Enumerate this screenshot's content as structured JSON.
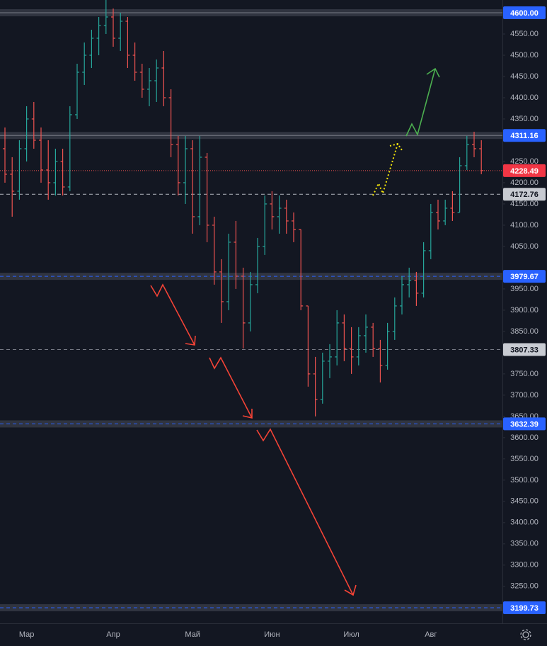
{
  "chart_data": {
    "type": "ohlc",
    "categories": [
      null,
      null,
      null,
      "Мар",
      null,
      null,
      null,
      null,
      null,
      null,
      null,
      null,
      null,
      null,
      null,
      "Апр",
      null,
      null,
      null,
      null,
      null,
      null,
      null,
      null,
      null,
      null,
      "Май",
      null,
      null,
      null,
      null,
      null,
      null,
      null,
      null,
      null,
      null,
      "Июн",
      null,
      null,
      null,
      null,
      null,
      null,
      null,
      null,
      null,
      null,
      "Июл",
      null,
      null,
      null,
      null,
      null,
      null,
      null,
      null,
      null,
      null,
      "Авг",
      null,
      null,
      null,
      null,
      null,
      null,
      null,
      null
    ],
    "ohlc": [
      [
        4280,
        4330,
        4200,
        4220
      ],
      [
        4220,
        4260,
        4120,
        4180
      ],
      [
        4180,
        4300,
        4160,
        4280
      ],
      [
        4280,
        4380,
        4250,
        4350
      ],
      [
        4350,
        4390,
        4280,
        4300
      ],
      [
        4300,
        4330,
        4200,
        4230
      ],
      [
        4230,
        4300,
        4160,
        4200
      ],
      [
        4200,
        4280,
        4170,
        4250
      ],
      [
        4250,
        4280,
        4170,
        4190
      ],
      [
        4190,
        4380,
        4180,
        4360
      ],
      [
        4360,
        4480,
        4350,
        4460
      ],
      [
        4460,
        4530,
        4430,
        4500
      ],
      [
        4500,
        4560,
        4470,
        4540
      ],
      [
        4540,
        4590,
        4500,
        4570
      ],
      [
        4570,
        4630,
        4550,
        4590
      ],
      [
        4590,
        4610,
        4520,
        4540
      ],
      [
        4540,
        4600,
        4510,
        4580
      ],
      [
        4580,
        4590,
        4470,
        4500
      ],
      [
        4500,
        4530,
        4440,
        4460
      ],
      [
        4460,
        4480,
        4400,
        4420
      ],
      [
        4420,
        4470,
        4380,
        4440
      ],
      [
        4440,
        4490,
        4390,
        4470
      ],
      [
        4470,
        4510,
        4380,
        4400
      ],
      [
        4400,
        4420,
        4260,
        4290
      ],
      [
        4290,
        4310,
        4170,
        4200
      ],
      [
        4200,
        4310,
        4150,
        4280
      ],
      [
        4280,
        4300,
        4080,
        4120
      ],
      [
        4120,
        4310,
        4100,
        4260
      ],
      [
        4260,
        4270,
        4060,
        4100
      ],
      [
        4100,
        4120,
        3960,
        3990
      ],
      [
        3990,
        4020,
        3870,
        3920
      ],
      [
        3920,
        4080,
        3900,
        4060
      ],
      [
        4060,
        4110,
        3950,
        3980
      ],
      [
        3980,
        4000,
        3810,
        3870
      ],
      [
        3870,
        3990,
        3850,
        3960
      ],
      [
        3960,
        4070,
        3940,
        4050
      ],
      [
        4050,
        4170,
        4030,
        4150
      ],
      [
        4150,
        4180,
        4090,
        4120
      ],
      [
        4120,
        4170,
        4080,
        4140
      ],
      [
        4140,
        4160,
        4080,
        4110
      ],
      [
        4110,
        4130,
        4060,
        4090
      ],
      [
        4090,
        4090,
        3900,
        3910
      ],
      [
        3910,
        3910,
        3720,
        3750
      ],
      [
        3750,
        3790,
        3650,
        3690
      ],
      [
        3690,
        3800,
        3680,
        3780
      ],
      [
        3780,
        3820,
        3740,
        3790
      ],
      [
        3790,
        3900,
        3770,
        3870
      ],
      [
        3870,
        3890,
        3780,
        3810
      ],
      [
        3810,
        3860,
        3750,
        3790
      ],
      [
        3790,
        3860,
        3770,
        3840
      ],
      [
        3840,
        3890,
        3800,
        3860
      ],
      [
        3860,
        3870,
        3790,
        3810
      ],
      [
        3810,
        3830,
        3730,
        3770
      ],
      [
        3770,
        3870,
        3760,
        3850
      ],
      [
        3850,
        3930,
        3830,
        3910
      ],
      [
        3910,
        3980,
        3890,
        3960
      ],
      [
        3960,
        4000,
        3930,
        3970
      ],
      [
        3970,
        3990,
        3910,
        3940
      ],
      [
        3940,
        4060,
        3930,
        4040
      ],
      [
        4040,
        4150,
        4020,
        4130
      ],
      [
        4130,
        4160,
        4090,
        4110
      ],
      [
        4110,
        4160,
        4100,
        4140
      ],
      [
        4140,
        4180,
        4110,
        4130
      ],
      [
        4130,
        4260,
        4130,
        4240
      ],
      [
        4240,
        4310,
        4230,
        4290
      ],
      [
        4290,
        4320,
        4260,
        4280
      ],
      [
        4280,
        4300,
        4220,
        4228.49
      ]
    ],
    "up_color": "#26a69a",
    "down_color": "#ef5350",
    "ylim": [
      3163,
      4630
    ],
    "yticks": [
      {
        "value": 3250,
        "label": "3250.00"
      },
      {
        "value": 3300,
        "label": "3300.00"
      },
      {
        "value": 3350,
        "label": "3350.00"
      },
      {
        "value": 3400,
        "label": "3400.00"
      },
      {
        "value": 3450,
        "label": "3450.00"
      },
      {
        "value": 3500,
        "label": "3500.00"
      },
      {
        "value": 3550,
        "label": "3550.00"
      },
      {
        "value": 3600,
        "label": "3600.00"
      },
      {
        "value": 3650,
        "label": "3650.00"
      },
      {
        "value": 3700,
        "label": "3700.00"
      },
      {
        "value": 3750,
        "label": "3750.00"
      },
      {
        "value": 3850,
        "label": "3850.00"
      },
      {
        "value": 3900,
        "label": "3900.00"
      },
      {
        "value": 3950,
        "label": "3950.00"
      },
      {
        "value": 4050,
        "label": "4050.00"
      },
      {
        "value": 4100,
        "label": "4100.00"
      },
      {
        "value": 4150,
        "label": "4150.00"
      },
      {
        "value": 4200,
        "label": "4200.00"
      },
      {
        "value": 4250,
        "label": "4250.00"
      },
      {
        "value": 4350,
        "label": "4350.00"
      },
      {
        "value": 4400,
        "label": "4400.00"
      },
      {
        "value": 4450,
        "label": "4450.00"
      },
      {
        "value": 4500,
        "label": "4500.00"
      },
      {
        "value": 4550,
        "label": "4550.00"
      }
    ],
    "price_levels": [
      {
        "value": 4600,
        "label": "4600.00",
        "color": "#787b86",
        "label_bg": "#2962ff",
        "line": "solid",
        "band": true
      },
      {
        "value": 4311.16,
        "label": "4311.16",
        "color": "#787b86",
        "label_bg": "#2962ff",
        "line": "solid",
        "band": true
      },
      {
        "value": 4228.49,
        "label": "4228.49",
        "color": "#ef5350",
        "label_bg": "#f23645",
        "line": "dotted",
        "band": false
      },
      {
        "value": 4172.76,
        "label": "4172.76",
        "color": "#b2b5be",
        "label_bg": "#c8cbd2",
        "line": "dashed",
        "band": false
      },
      {
        "value": 3979.67,
        "label": "3979.67",
        "color": "#2962ff",
        "label_bg": "#2962ff",
        "line": "dashed",
        "band": true
      },
      {
        "value": 3807.33,
        "label": "3807.33",
        "color": "#787b86",
        "label_bg": "#c8cbd2",
        "line": "dashed",
        "band": false
      },
      {
        "value": 3632.39,
        "label": "3632.39",
        "color": "#2962ff",
        "label_bg": "#2962ff",
        "line": "dashed",
        "band": true
      },
      {
        "value": 3199.73,
        "label": "3199.73",
        "color": "#2962ff",
        "label_bg": "#2962ff",
        "line": "dashed",
        "band": true
      }
    ]
  }
}
